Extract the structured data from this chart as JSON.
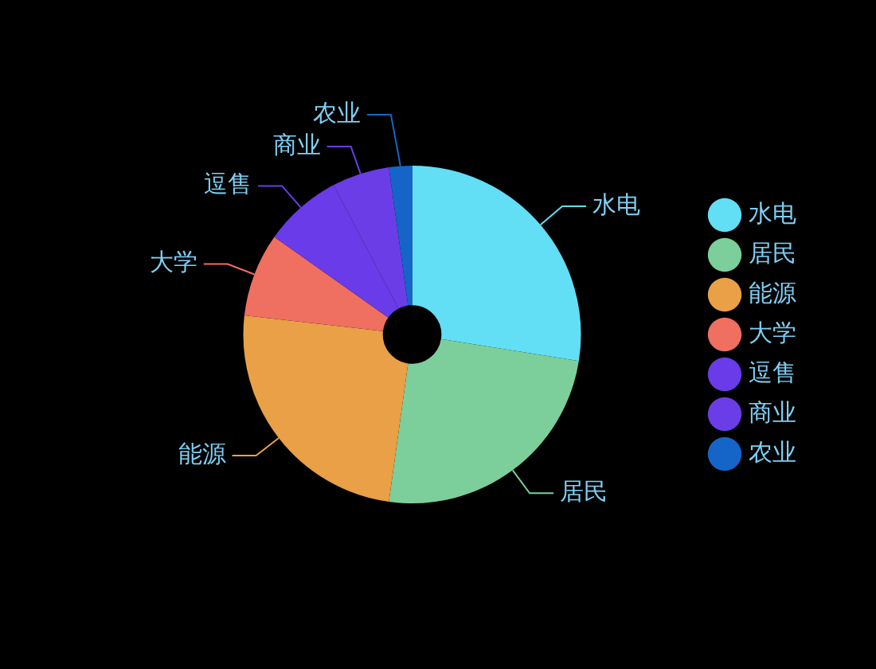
{
  "chart_data": {
    "type": "donut",
    "categories": [
      "水电",
      "居民",
      "能源",
      "大学",
      "逗售",
      "商业",
      "农业"
    ],
    "values": [
      27.5,
      24.7,
      24.6,
      8,
      7.5,
      5.5,
      2.2
    ],
    "colors": [
      "#62def5",
      "#7ccf9b",
      "#e9a046",
      "#ef6f61",
      "#6a3be8",
      "#6b3de6",
      "#1565c8"
    ],
    "legend": "right"
  }
}
